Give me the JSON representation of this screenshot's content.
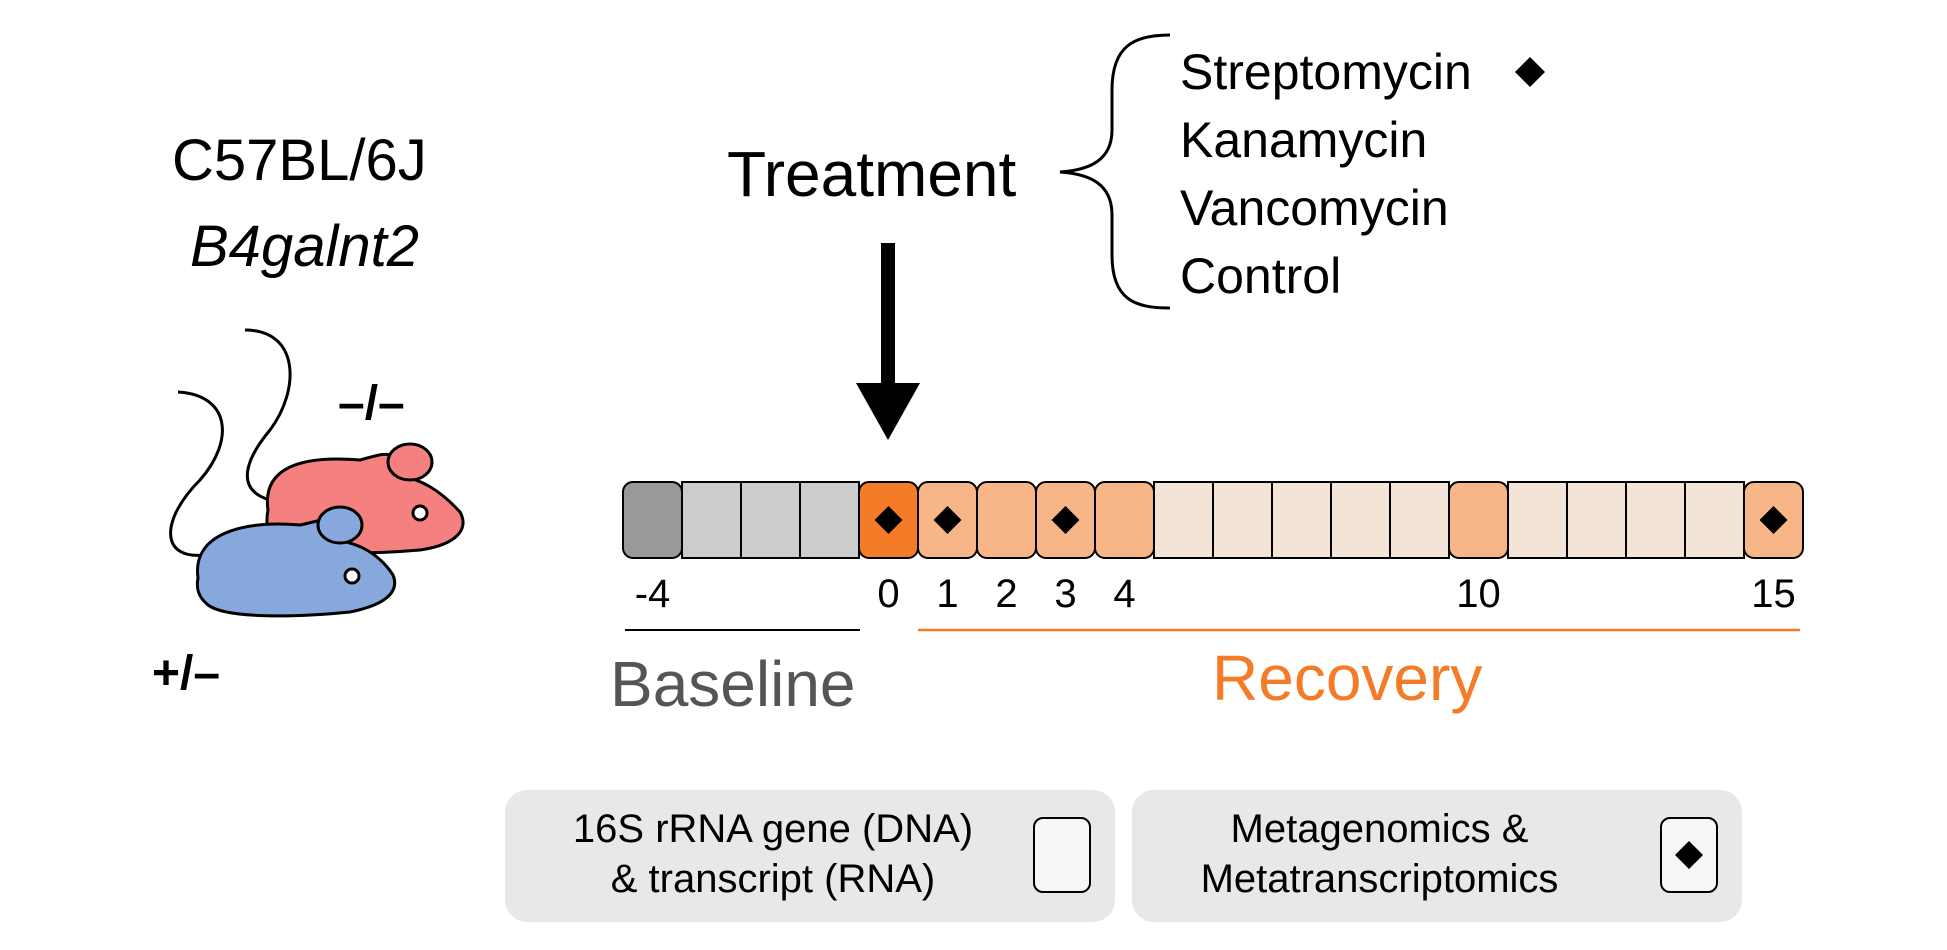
{
  "strain": {
    "line1": "C57BL/6J",
    "line2": "B4galnt2"
  },
  "genotypes": {
    "knockout": "–/–",
    "heterozygous": "+/–"
  },
  "treatment": {
    "label": "Treatment",
    "options": [
      {
        "name": "Streptomycin",
        "marked": true
      },
      {
        "name": "Kanamycin",
        "marked": false
      },
      {
        "name": "Vancomycin",
        "marked": false
      },
      {
        "name": "Control",
        "marked": false
      }
    ]
  },
  "timeline": {
    "start_day": -4,
    "end_day": 15,
    "treatment_day": 0,
    "sampled_days": [
      -4,
      0,
      1,
      2,
      3,
      4,
      10,
      15
    ],
    "metagenomic_days": [
      0,
      1,
      3,
      15
    ],
    "labels": [
      "-4",
      "0",
      "1",
      "2",
      "3",
      "4",
      "10",
      "15"
    ],
    "label_days": [
      -4,
      0,
      1,
      2,
      3,
      4,
      10,
      15
    ]
  },
  "phases": {
    "baseline": "Baseline",
    "recovery": "Recovery"
  },
  "legend": {
    "amplicon_line1": "16S rRNA gene (DNA)",
    "amplicon_line2": "& transcript (RNA)",
    "meta_line1": "Metagenomics &",
    "meta_line2": "Metatranscriptomics"
  },
  "colors": {
    "baseline_sampled": "#999999",
    "baseline_empty": "#cccccc",
    "treatment_day": "#f47c28",
    "recovery_sampled": "#f8b688",
    "recovery_empty": "#f3e4d8",
    "recovery_accent": "#f47c28",
    "baseline_text": "#555555",
    "mouse_blue": "#86a8dc",
    "mouse_red": "#f48080"
  }
}
